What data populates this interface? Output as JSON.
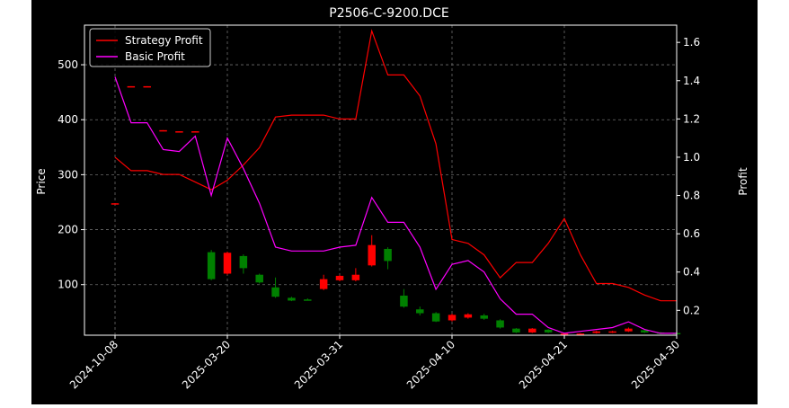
{
  "chart_data": {
    "type": "candlestick+line",
    "title": "P2506-C-9200.DCE",
    "xlabel": "",
    "ylabel_left": "Price",
    "ylabel_right": "Profit",
    "ylim_left": [
      8,
      572
    ],
    "ylim_right": [
      0.07,
      1.69
    ],
    "yticks_left": [
      100,
      200,
      300,
      400,
      500
    ],
    "yticks_right": [
      0.2,
      0.4,
      0.6,
      0.8,
      1.0,
      1.2,
      1.4,
      1.6
    ],
    "x_tick_labels": [
      {
        "index": 0,
        "label": "2024-10-08"
      },
      {
        "index": 7,
        "label": "2025-03-20"
      },
      {
        "index": 14,
        "label": "2025-03-31"
      },
      {
        "index": 21,
        "label": "2025-04-10"
      },
      {
        "index": 28,
        "label": "2025-04-21"
      },
      {
        "index": 35,
        "label": "2025-04-30"
      }
    ],
    "grid": true,
    "legend_position": "upper-left",
    "colors": {
      "up": "#ff0000",
      "down": "#008000",
      "strategy": "#ff0000",
      "basic": "#ff00ff",
      "background": "#000000",
      "text": "#ffffff"
    },
    "candles": [
      {
        "o": 247,
        "c": 248,
        "h": 248,
        "l": 247
      },
      {
        "o": 460,
        "c": 461,
        "h": 461,
        "l": 460
      },
      {
        "o": 460,
        "c": 461,
        "h": 461,
        "l": 460
      },
      {
        "o": 380,
        "c": 381,
        "h": 381,
        "l": 380
      },
      {
        "o": 378,
        "c": 379,
        "h": 379,
        "l": 378
      },
      {
        "o": 378,
        "c": 379,
        "h": 379,
        "l": 378
      },
      {
        "o": 159,
        "c": 110,
        "h": 163,
        "l": 108
      },
      {
        "o": 120,
        "c": 158,
        "h": 160,
        "l": 118
      },
      {
        "o": 152,
        "c": 130,
        "h": 155,
        "l": 120
      },
      {
        "o": 118,
        "c": 104,
        "h": 120,
        "l": 102
      },
      {
        "o": 95,
        "c": 78,
        "h": 113,
        "l": 76
      },
      {
        "o": 76,
        "c": 71,
        "h": 78,
        "l": 70
      },
      {
        "o": 73,
        "c": 72,
        "h": 75,
        "l": 71
      },
      {
        "o": 92,
        "c": 110,
        "h": 118,
        "l": 90
      },
      {
        "o": 108,
        "c": 116,
        "h": 118,
        "l": 106
      },
      {
        "o": 108,
        "c": 118,
        "h": 130,
        "l": 106
      },
      {
        "o": 135,
        "c": 172,
        "h": 190,
        "l": 133
      },
      {
        "o": 165,
        "c": 143,
        "h": 168,
        "l": 128
      },
      {
        "o": 80,
        "c": 60,
        "h": 92,
        "l": 58
      },
      {
        "o": 55,
        "c": 48,
        "h": 60,
        "l": 44
      },
      {
        "o": 48,
        "c": 33,
        "h": 50,
        "l": 32
      },
      {
        "o": 35,
        "c": 45,
        "h": 47,
        "l": 33
      },
      {
        "o": 40,
        "c": 46,
        "h": 48,
        "l": 38
      },
      {
        "o": 44,
        "c": 38,
        "h": 47,
        "l": 36
      },
      {
        "o": 35,
        "c": 22,
        "h": 37,
        "l": 20
      },
      {
        "o": 20,
        "c": 13,
        "h": 21,
        "l": 12
      },
      {
        "o": 13,
        "c": 20,
        "h": 21,
        "l": 12
      },
      {
        "o": 18,
        "c": 13,
        "h": 19,
        "l": 12
      },
      {
        "o": 10,
        "c": 11,
        "h": 12,
        "l": 9
      },
      {
        "o": 10,
        "c": 11,
        "h": 12,
        "l": 9
      },
      {
        "o": 12,
        "c": 15,
        "h": 16,
        "l": 11
      },
      {
        "o": 13,
        "c": 15,
        "h": 16,
        "l": 12
      },
      {
        "o": 15,
        "c": 20,
        "h": 22,
        "l": 14
      },
      {
        "o": 17,
        "c": 13,
        "h": 18,
        "l": 12
      },
      {
        "o": 13,
        "c": 11,
        "h": 14,
        "l": 10
      },
      {
        "o": 12,
        "c": 11,
        "h": 13,
        "l": 10
      }
    ],
    "series": [
      {
        "name": "Strategy Profit",
        "values": [
          1.0,
          0.93,
          0.93,
          0.91,
          0.91,
          0.87,
          0.83,
          0.88,
          0.96,
          1.05,
          1.21,
          1.22,
          1.22,
          1.22,
          1.2,
          1.2,
          1.66,
          1.43,
          1.43,
          1.32,
          1.07,
          0.57,
          0.55,
          0.49,
          0.37,
          0.45,
          0.45,
          0.55,
          0.68,
          0.49,
          0.34,
          0.34,
          0.32,
          0.28,
          0.25,
          0.25
        ]
      },
      {
        "name": "Basic Profit",
        "values": [
          1.42,
          1.18,
          1.18,
          1.04,
          1.03,
          1.11,
          0.8,
          1.1,
          0.94,
          0.76,
          0.53,
          0.51,
          0.51,
          0.51,
          0.53,
          0.54,
          0.79,
          0.66,
          0.66,
          0.53,
          0.31,
          0.44,
          0.46,
          0.4,
          0.26,
          0.18,
          0.18,
          0.11,
          0.08,
          0.09,
          0.1,
          0.11,
          0.14,
          0.1,
          0.08,
          0.08
        ]
      }
    ]
  }
}
